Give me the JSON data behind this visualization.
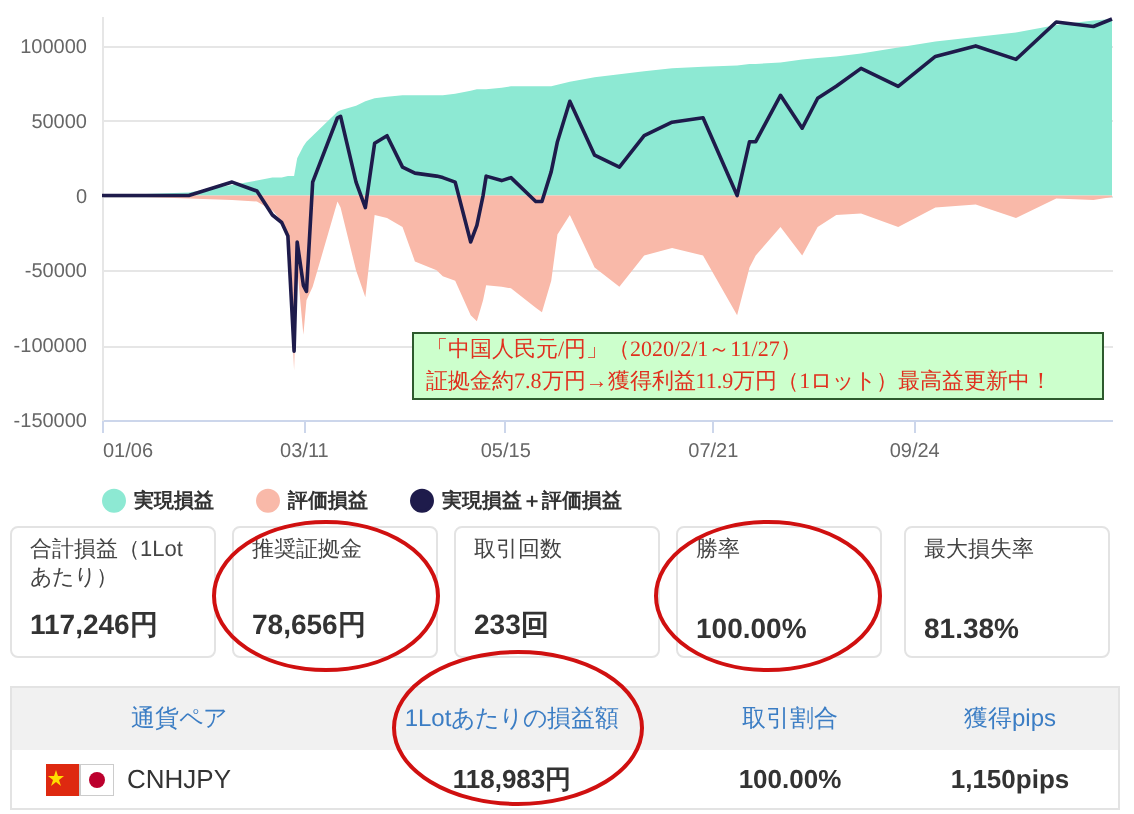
{
  "chart_data": [
    {
      "type": "area",
      "legend": "bottom",
      "grid": "y",
      "x": [
        "2020-01-06",
        "2020-02-03",
        "2020-02-17",
        "2020-02-25",
        "2020-03-01",
        "2020-03-04",
        "2020-03-06",
        "2020-03-08",
        "2020-03-09",
        "2020-03-11",
        "2020-03-12",
        "2020-03-14",
        "2020-03-22",
        "2020-03-23",
        "2020-03-28",
        "2020-03-31",
        "2020-04-03",
        "2020-04-07",
        "2020-04-12",
        "2020-04-16",
        "2020-04-23",
        "2020-04-25",
        "2020-04-29",
        "2020-05-04",
        "2020-05-06",
        "2020-05-08",
        "2020-05-09",
        "2020-05-14",
        "2020-05-17",
        "2020-05-25",
        "2020-05-27",
        "2020-05-30",
        "2020-06-01",
        "2020-06-05",
        "2020-06-13",
        "2020-06-21",
        "2020-06-29",
        "2020-07-08",
        "2020-07-18",
        "2020-07-29",
        "2020-08-02",
        "2020-08-04",
        "2020-08-12",
        "2020-08-19",
        "2020-08-24",
        "2020-08-30",
        "2020-09-07",
        "2020-09-19",
        "2020-10-01",
        "2020-10-14",
        "2020-10-27",
        "2020-11-09",
        "2020-11-21",
        "2020-11-27"
      ],
      "series": [
        {
          "name": "実現損益",
          "color": "#8de9d3",
          "values": [
            0,
            2000,
            7000,
            10000,
            12000,
            12000,
            13000,
            13000,
            25000,
            33000,
            36000,
            40000,
            56000,
            57000,
            60000,
            63000,
            65000,
            66000,
            67000,
            67000,
            67000,
            67000,
            68000,
            70000,
            71000,
            71000,
            71000,
            72000,
            73000,
            73000,
            73000,
            73000,
            74000,
            76000,
            79000,
            81000,
            83000,
            85000,
            86000,
            87000,
            88000,
            88000,
            89000,
            91000,
            92000,
            93000,
            95000,
            99000,
            103000,
            106000,
            109000,
            114000,
            117000,
            118000
          ]
        },
        {
          "name": "評価損益",
          "color": "#f9b9a9",
          "values": [
            0,
            -2000,
            -3000,
            -4000,
            -10000,
            -17000,
            -30000,
            -117000,
            -48000,
            -93000,
            -70000,
            -61000,
            -4000,
            -8000,
            -50000,
            -68000,
            -13000,
            -15000,
            -21000,
            -44000,
            -50000,
            -54000,
            -57000,
            -80000,
            -84000,
            -70000,
            -60000,
            -61000,
            -62000,
            -75000,
            -78000,
            -57000,
            -26000,
            -13000,
            -48000,
            -61000,
            -40000,
            -35000,
            -40000,
            -80000,
            -48000,
            -40000,
            -21000,
            -40000,
            -21000,
            -13000,
            -12000,
            -21000,
            -8000,
            -6000,
            -15000,
            -2000,
            -3000,
            -1000
          ]
        },
        {
          "name": "実現損益＋評価損益",
          "type": "line",
          "color": "#1e1b4b",
          "values": [
            0,
            0,
            9000,
            3000,
            -13000,
            -18000,
            -27000,
            -104000,
            -31000,
            -60000,
            -64000,
            9000,
            52000,
            53000,
            9000,
            -8000,
            35000,
            40000,
            19000,
            15000,
            13000,
            12000,
            9000,
            -31000,
            -20000,
            0,
            13000,
            10000,
            12000,
            -4000,
            -4000,
            16000,
            36000,
            63000,
            27000,
            19000,
            40000,
            49000,
            52000,
            0,
            36000,
            36000,
            67000,
            45000,
            65000,
            73000,
            85000,
            73000,
            93000,
            100000,
            91000,
            116000,
            113000,
            118000
          ]
        }
      ],
      "xlim": [
        "2020-01-06",
        "2020-11-27"
      ],
      "xticks": [
        {
          "value": "2020-01-06",
          "label": "01/06"
        },
        {
          "value": "2020-03-11",
          "label": "03/11"
        },
        {
          "value": "2020-05-15",
          "label": "05/15"
        },
        {
          "value": "2020-07-21",
          "label": "07/21"
        },
        {
          "value": "2020-09-24",
          "label": "09/24"
        }
      ],
      "ylim": [
        -150000,
        120000
      ],
      "yticks": [
        -150000,
        -100000,
        -50000,
        0,
        50000,
        100000
      ],
      "annotations": [
        "「中国人民元/円」（2020/2/1～11/27）",
        "証拠金約7.8万円→獲得利益11.9万円（1ロット）最高益更新中！"
      ]
    },
    {
      "type": "other",
      "annotations": [
        "合計損益（1Lotあたり）",
        "117,246円",
        "推奨証拠金",
        "78,656円",
        "取引回数",
        "233回",
        "勝率",
        "100.00%",
        "最大損失率",
        "81.38%",
        "通貨ペア",
        "1Lotあたりの損益額",
        "取引割合",
        "獲得pips",
        "CNHJPY",
        "118,983円",
        "100.00%",
        "1,150pips"
      ]
    }
  ]
}
